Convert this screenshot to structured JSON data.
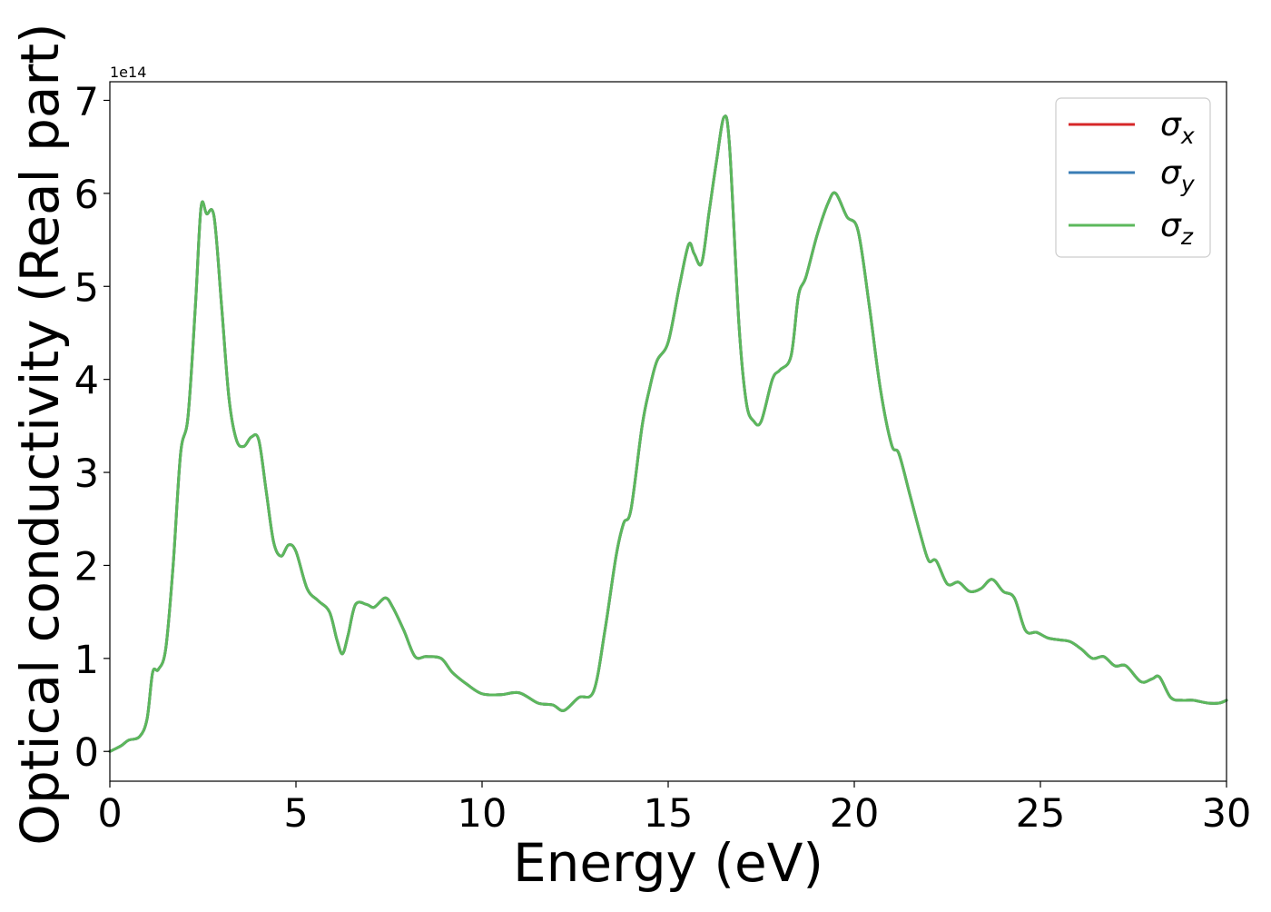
{
  "chart_data": {
    "type": "line",
    "xlabel": "Energy (eV)",
    "ylabel": "Optical conductivity (Real part)",
    "y_offset_label": "1e14",
    "y_scale": 100000000000000.0,
    "xlim": [
      0,
      30
    ],
    "ylim": [
      -0.32,
      7.2
    ],
    "x_ticks": [
      0,
      5,
      10,
      15,
      20,
      25,
      30
    ],
    "y_ticks": [
      0,
      1,
      2,
      3,
      4,
      5,
      6,
      7
    ],
    "grid": false,
    "legend_position": "top-right",
    "series": [
      {
        "name": "σ",
        "subscript": "x",
        "color": "#d62728"
      },
      {
        "name": "σ",
        "subscript": "y",
        "color": "#3a7db5"
      },
      {
        "name": "σ",
        "subscript": "z",
        "color": "#5cb85c"
      }
    ],
    "curve": [
      [
        0.0,
        0.0
      ],
      [
        0.3,
        0.06
      ],
      [
        0.5,
        0.12
      ],
      [
        0.8,
        0.16
      ],
      [
        1.0,
        0.35
      ],
      [
        1.15,
        0.85
      ],
      [
        1.3,
        0.88
      ],
      [
        1.5,
        1.1
      ],
      [
        1.7,
        2.0
      ],
      [
        1.9,
        3.2
      ],
      [
        2.1,
        3.6
      ],
      [
        2.3,
        4.8
      ],
      [
        2.45,
        5.85
      ],
      [
        2.6,
        5.78
      ],
      [
        2.8,
        5.75
      ],
      [
        3.0,
        4.8
      ],
      [
        3.2,
        3.8
      ],
      [
        3.4,
        3.35
      ],
      [
        3.6,
        3.28
      ],
      [
        3.8,
        3.38
      ],
      [
        4.0,
        3.35
      ],
      [
        4.2,
        2.8
      ],
      [
        4.4,
        2.25
      ],
      [
        4.6,
        2.1
      ],
      [
        4.8,
        2.22
      ],
      [
        5.0,
        2.15
      ],
      [
        5.3,
        1.75
      ],
      [
        5.6,
        1.62
      ],
      [
        5.9,
        1.5
      ],
      [
        6.1,
        1.2
      ],
      [
        6.25,
        1.05
      ],
      [
        6.4,
        1.25
      ],
      [
        6.6,
        1.58
      ],
      [
        6.9,
        1.58
      ],
      [
        7.1,
        1.55
      ],
      [
        7.4,
        1.65
      ],
      [
        7.6,
        1.55
      ],
      [
        7.9,
        1.3
      ],
      [
        8.2,
        1.02
      ],
      [
        8.5,
        1.02
      ],
      [
        8.9,
        1.0
      ],
      [
        9.2,
        0.85
      ],
      [
        9.6,
        0.72
      ],
      [
        10.0,
        0.62
      ],
      [
        10.5,
        0.61
      ],
      [
        11.0,
        0.63
      ],
      [
        11.5,
        0.52
      ],
      [
        11.9,
        0.5
      ],
      [
        12.2,
        0.44
      ],
      [
        12.6,
        0.58
      ],
      [
        13.0,
        0.65
      ],
      [
        13.3,
        1.3
      ],
      [
        13.6,
        2.1
      ],
      [
        13.8,
        2.45
      ],
      [
        14.0,
        2.6
      ],
      [
        14.3,
        3.5
      ],
      [
        14.5,
        3.9
      ],
      [
        14.7,
        4.2
      ],
      [
        15.0,
        4.4
      ],
      [
        15.3,
        5.0
      ],
      [
        15.55,
        5.45
      ],
      [
        15.7,
        5.35
      ],
      [
        15.9,
        5.25
      ],
      [
        16.1,
        5.8
      ],
      [
        16.3,
        6.35
      ],
      [
        16.5,
        6.82
      ],
      [
        16.65,
        6.5
      ],
      [
        16.9,
        4.6
      ],
      [
        17.1,
        3.75
      ],
      [
        17.3,
        3.55
      ],
      [
        17.5,
        3.55
      ],
      [
        17.8,
        4.0
      ],
      [
        18.0,
        4.1
      ],
      [
        18.3,
        4.25
      ],
      [
        18.5,
        4.9
      ],
      [
        18.7,
        5.1
      ],
      [
        19.0,
        5.55
      ],
      [
        19.3,
        5.9
      ],
      [
        19.5,
        6.0
      ],
      [
        19.8,
        5.75
      ],
      [
        20.1,
        5.6
      ],
      [
        20.4,
        4.8
      ],
      [
        20.7,
        3.9
      ],
      [
        21.0,
        3.3
      ],
      [
        21.2,
        3.2
      ],
      [
        21.5,
        2.75
      ],
      [
        21.8,
        2.3
      ],
      [
        22.0,
        2.05
      ],
      [
        22.2,
        2.05
      ],
      [
        22.5,
        1.8
      ],
      [
        22.8,
        1.82
      ],
      [
        23.1,
        1.72
      ],
      [
        23.4,
        1.75
      ],
      [
        23.7,
        1.85
      ],
      [
        24.0,
        1.72
      ],
      [
        24.3,
        1.65
      ],
      [
        24.6,
        1.3
      ],
      [
        24.9,
        1.28
      ],
      [
        25.2,
        1.22
      ],
      [
        25.5,
        1.2
      ],
      [
        25.8,
        1.18
      ],
      [
        26.1,
        1.1
      ],
      [
        26.4,
        1.0
      ],
      [
        26.7,
        1.02
      ],
      [
        27.0,
        0.92
      ],
      [
        27.3,
        0.92
      ],
      [
        27.7,
        0.75
      ],
      [
        28.0,
        0.78
      ],
      [
        28.2,
        0.8
      ],
      [
        28.5,
        0.58
      ],
      [
        28.8,
        0.55
      ],
      [
        29.1,
        0.55
      ],
      [
        29.5,
        0.52
      ],
      [
        29.8,
        0.52
      ],
      [
        30.0,
        0.55
      ]
    ]
  }
}
